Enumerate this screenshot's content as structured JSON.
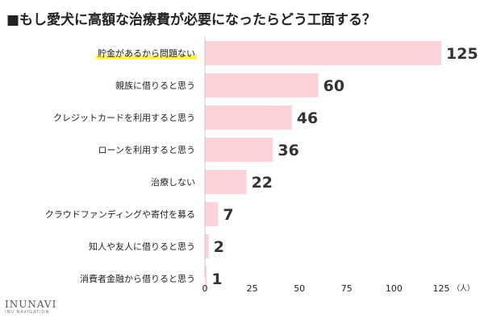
{
  "title": "■もし愛犬に高額な治療費が必要になったらどう工面する？",
  "logo": {
    "main": "INUNAVI",
    "sub": "INU NAVIGATION"
  },
  "colors": {
    "bar": "#fbd3d8",
    "highlight": "#fff35a",
    "axis": "#c8c8c8"
  },
  "chart_data": {
    "type": "bar",
    "orientation": "horizontal",
    "title": "■もし愛犬に高額な治療費が必要になったらどう工面する？",
    "categories": [
      "貯金があるから問題ない",
      "親族に借りると思う",
      "クレジットカードを利用すると思う",
      "ローンを利用すると思う",
      "治療しない",
      "クラウドファンディングや寄付を募る",
      "知人や友人に借りると思う",
      "消費者金融から借りると思う"
    ],
    "values": [
      125,
      60,
      46,
      36,
      22,
      7,
      2,
      1
    ],
    "highlighted_category": "貯金があるから問題ない",
    "xticks": [
      "0",
      "25",
      "50",
      "75",
      "100",
      "125"
    ],
    "xlim": [
      0,
      125
    ],
    "unit": "（人）",
    "grid": false,
    "legend": "none"
  }
}
